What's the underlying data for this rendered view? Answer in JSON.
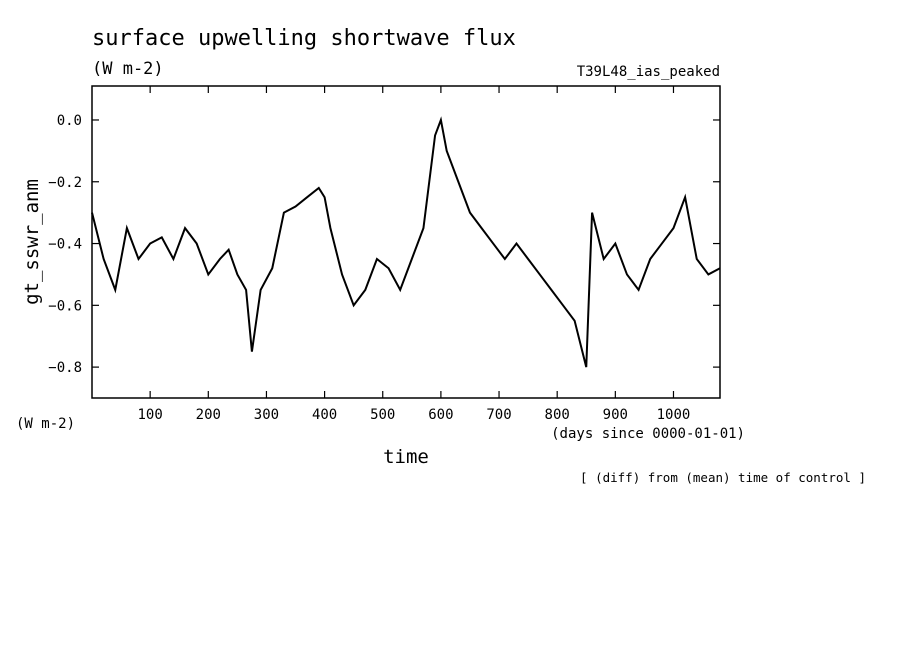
{
  "chart_data": {
    "type": "line",
    "title": "surface upwelling shortwave flux",
    "units": "(W m-2)",
    "experiment": "T39L48_ias_peaked",
    "ylabel": "gt_sswr_anm",
    "y_units": "(W m-2)",
    "xlabel": "time",
    "x_units": "(days since 0000-01-01)",
    "note": "[ (diff) from (mean) time of control ]",
    "xlim": [
      0,
      1080
    ],
    "ylim": [
      -0.9,
      0.11
    ],
    "x_ticks": [
      100,
      200,
      300,
      400,
      500,
      600,
      700,
      800,
      900,
      1000
    ],
    "y_ticks": [
      0.0,
      -0.2,
      -0.4,
      -0.6,
      -0.8
    ],
    "y_tick_labels": [
      "0.0",
      "−0.2",
      "−0.4",
      "−0.6",
      "−0.8"
    ],
    "grid": false,
    "series": [
      {
        "name": "",
        "x": [
          0,
          20,
          40,
          60,
          80,
          100,
          120,
          140,
          160,
          180,
          200,
          220,
          235,
          250,
          265,
          275,
          290,
          310,
          330,
          350,
          370,
          390,
          400,
          410,
          430,
          450,
          470,
          490,
          510,
          530,
          550,
          570,
          590,
          600,
          610,
          630,
          650,
          670,
          690,
          710,
          730,
          750,
          770,
          790,
          810,
          830,
          850,
          860,
          880,
          900,
          920,
          940,
          960,
          980,
          1000,
          1020,
          1040,
          1060,
          1080
        ],
        "y": [
          -0.3,
          -0.45,
          -0.55,
          -0.35,
          -0.45,
          -0.4,
          -0.38,
          -0.45,
          -0.35,
          -0.4,
          -0.5,
          -0.45,
          -0.42,
          -0.5,
          -0.55,
          -0.75,
          -0.55,
          -0.48,
          -0.3,
          -0.28,
          -0.25,
          -0.22,
          -0.25,
          -0.35,
          -0.5,
          -0.6,
          -0.55,
          -0.45,
          -0.48,
          -0.55,
          -0.45,
          -0.35,
          -0.05,
          0.0,
          -0.1,
          -0.2,
          -0.3,
          -0.35,
          -0.4,
          -0.45,
          -0.4,
          -0.45,
          -0.5,
          -0.55,
          -0.6,
          -0.65,
          -0.8,
          -0.3,
          -0.45,
          -0.4,
          -0.5,
          -0.55,
          -0.45,
          -0.4,
          -0.35,
          -0.25,
          -0.45,
          -0.5,
          -0.48
        ]
      }
    ]
  }
}
